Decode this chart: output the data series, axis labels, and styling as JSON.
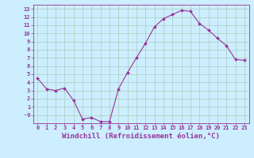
{
  "x": [
    0,
    1,
    2,
    3,
    4,
    5,
    6,
    7,
    8,
    9,
    10,
    11,
    12,
    13,
    14,
    15,
    16,
    17,
    18,
    19,
    20,
    21,
    22,
    23
  ],
  "y": [
    4.5,
    3.2,
    3.0,
    3.3,
    1.8,
    -0.5,
    -0.3,
    -0.8,
    -0.8,
    3.2,
    5.2,
    7.0,
    8.8,
    10.8,
    11.8,
    12.3,
    12.8,
    12.7,
    11.2,
    10.4,
    9.4,
    8.5,
    6.8,
    6.7
  ],
  "line_color": "#993399",
  "marker": "D",
  "markersize": 2.0,
  "linewidth": 0.8,
  "xlabel": "Windchill (Refroidissement éolien,°C)",
  "xlabel_fontsize": 6.5,
  "xlabel_color": "#993399",
  "xlabel_weight": "bold",
  "xticks": [
    0,
    1,
    2,
    3,
    4,
    5,
    6,
    7,
    8,
    9,
    10,
    11,
    12,
    13,
    14,
    15,
    16,
    17,
    18,
    19,
    20,
    21,
    22,
    23
  ],
  "xlim": [
    -0.5,
    23.5
  ],
  "ylim": [
    -1.0,
    13.5
  ],
  "ytick_min": 0,
  "ytick_max": 13,
  "background_color": "#cceeff",
  "grid_color": "#aaccbb",
  "tick_color": "#993399",
  "tick_fontsize": 5.0,
  "tick_fontcolor": "#993399",
  "tick_fontweight": "bold"
}
